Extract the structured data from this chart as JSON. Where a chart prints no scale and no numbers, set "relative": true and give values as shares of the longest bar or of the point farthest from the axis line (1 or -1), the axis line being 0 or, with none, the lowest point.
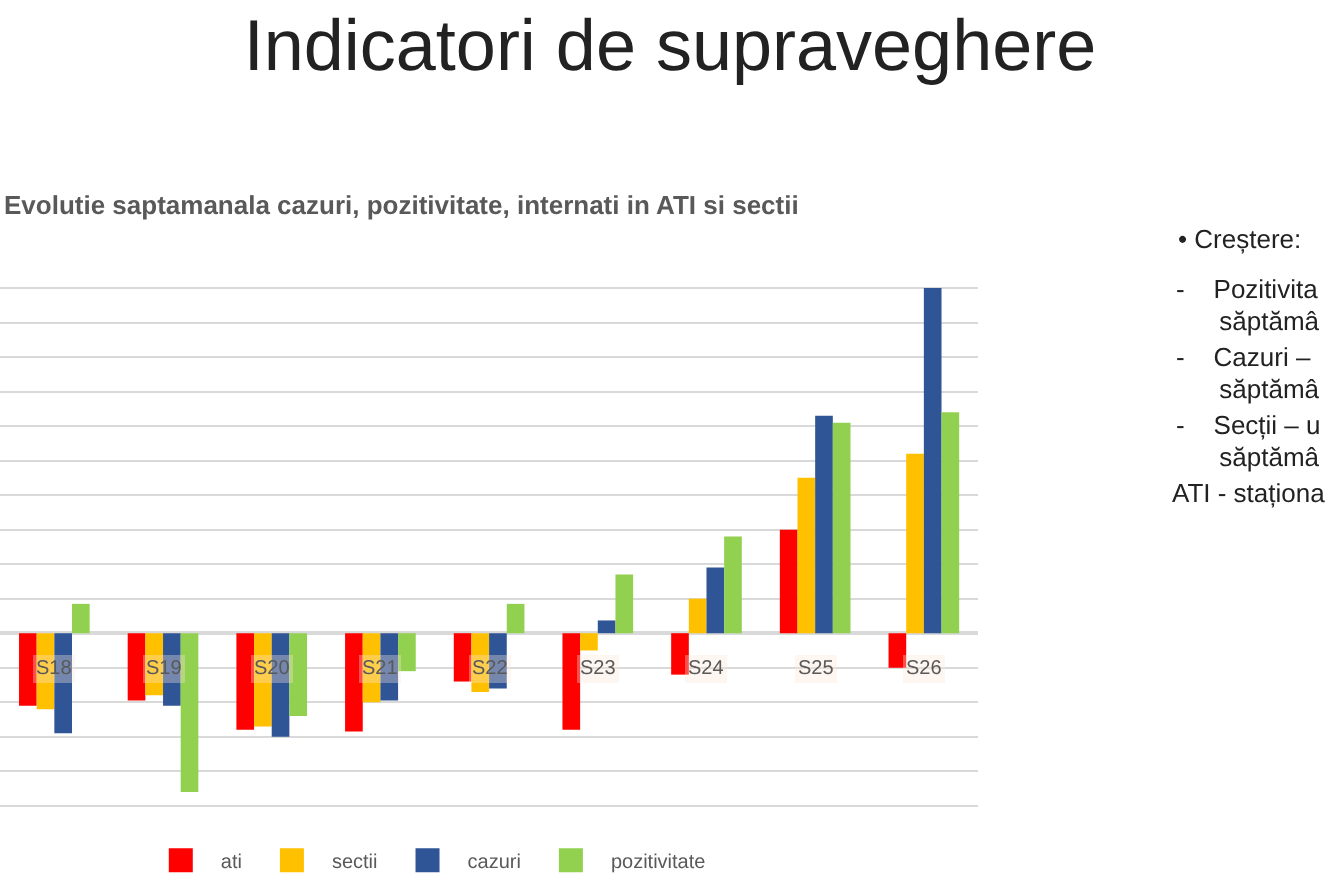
{
  "chart_data": {
    "type": "bar",
    "title": "Indicatori de supraveghere",
    "subtitle": "Evolutie saptamanala cazuri, pozitivitate, internati in ATI si sectii",
    "categories": [
      "S18",
      "S19",
      "S20",
      "S21",
      "S22",
      "S23",
      "S24",
      "S25",
      "S26"
    ],
    "relative": true,
    "series": [
      {
        "name": "ati",
        "color": "#ff0000",
        "values": [
          -0.21,
          -0.195,
          -0.28,
          -0.285,
          -0.14,
          -0.28,
          -0.12,
          0.3,
          -0.1
        ]
      },
      {
        "name": "sectii",
        "color": "#ffc000",
        "values": [
          -0.22,
          -0.18,
          -0.27,
          -0.2,
          -0.17,
          -0.05,
          0.1,
          0.45,
          0.52
        ]
      },
      {
        "name": "cazuri",
        "color": "#2f5597",
        "values": [
          -0.29,
          -0.21,
          -0.3,
          -0.195,
          -0.16,
          0.037,
          0.19,
          0.63,
          1
        ]
      },
      {
        "name": "pozitivitate",
        "color": "#92d050",
        "values": [
          0.085,
          -0.46,
          -0.24,
          -0.11,
          0.085,
          0.17,
          0.28,
          0.61,
          0.64
        ]
      }
    ],
    "grid": "y",
    "legend": "bottom",
    "annotations": [
      "• Creștere:",
      "-    Pozitivita",
      "      săptămâ",
      "-    Cazuri –",
      "      săptămâ",
      "-    Secții – u",
      "      săptămâ",
      "ATI - staționa"
    ]
  }
}
